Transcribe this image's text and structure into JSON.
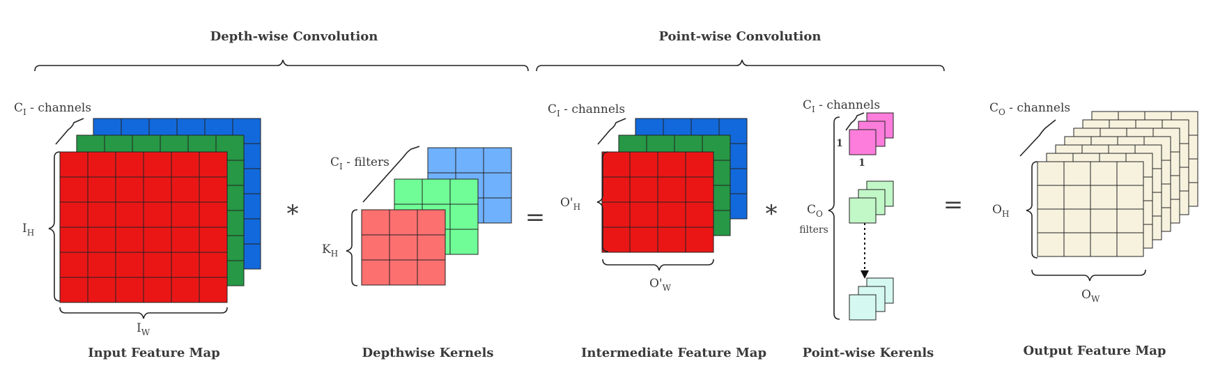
{
  "sections": {
    "depthwise": "Depth-wise Convolution",
    "pointwise": "Point-wise Convolution"
  },
  "labels": {
    "input": "Input Feature Map",
    "depthwise_kernels": "Depthwise Kernels",
    "intermediate": "Intermediate Feature Map",
    "pointwise_kernels": "Point-wise Kerenls",
    "output": "Output Feature Map"
  },
  "annotations": {
    "ci_channels_main": "C",
    "ci_channels_sub": "I",
    "ci_channels_suffix": " - channels",
    "co_sub": "O",
    "ci_filters_suffix": " - filters",
    "filters_word": "filters",
    "ih_main": "I",
    "ih_sub": "H",
    "iw_main": "I",
    "iw_sub": "W",
    "kh_main": "K",
    "kh_sub": "H",
    "oph_main": "O'",
    "oph_sub": "H",
    "opw_main": "O'",
    "opw_sub": "W",
    "oh_main": "O",
    "oh_sub": "H",
    "ow_main": "O",
    "ow_sub": "W",
    "one_h": "1",
    "one_w": "1"
  },
  "operators": {
    "conv1": "*",
    "eq1": "=",
    "conv2": "*",
    "eq2": "="
  },
  "colors": {
    "red": "#ea1616",
    "green": "#269846",
    "blue": "#1269db",
    "light_red": "#fd7070",
    "light_green": "#70fd98",
    "light_blue": "#70b1fd",
    "magenta": "#fc7ddb",
    "pale_green": "#c2f7c7",
    "pale_cyan": "#d5f9f1",
    "cream": "#f6f2de"
  }
}
